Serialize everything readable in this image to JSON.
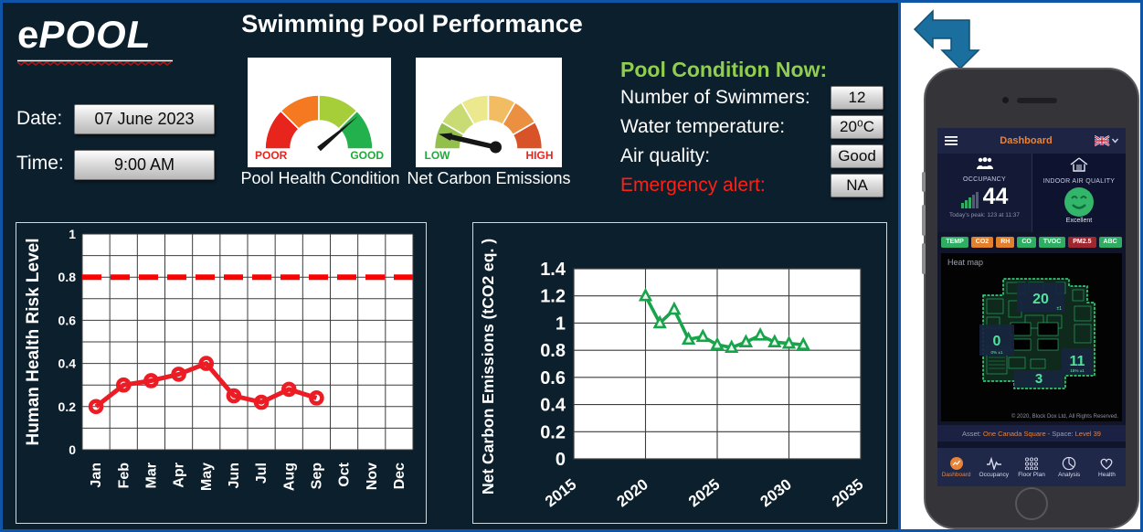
{
  "logo": {
    "prefix": "e",
    "caps": "POOL"
  },
  "header": {
    "title": "Swimming Pool Performance"
  },
  "datetime": {
    "date_label": "Date:",
    "date_value": "07 June 2023",
    "time_label": "Time:",
    "time_value": "9:00 AM"
  },
  "gauges": [
    {
      "caption": "Pool Health Condition",
      "left_label": "POOR",
      "right_label": "GOOD",
      "left_color": "#e8251d",
      "right_color": "#1faa3c",
      "segments": [
        "#e8251d",
        "#f47920",
        "#a6ce39",
        "#22b14c"
      ],
      "needle_angle_deg": 40
    },
    {
      "caption": "Net Carbon Emissions",
      "left_label": "LOW",
      "right_label": "HIGH",
      "left_color": "#1faa3c",
      "right_color": "#e8251d",
      "segments": [
        "#93bf4d",
        "#c9dc74",
        "#ebe88e",
        "#f2bd62",
        "#eb8f41",
        "#d85428"
      ],
      "needle_angle_deg": 167
    }
  ],
  "condition_panel": {
    "title": "Pool Condition Now:",
    "rows": [
      {
        "label": "Number of Swimmers:",
        "value": "12",
        "label_color": "#ffffff"
      },
      {
        "label": "Water temperature:",
        "value": "20⁰C",
        "label_color": "#ffffff"
      },
      {
        "label": "Air quality:",
        "value": "Good",
        "label_color": "#ffffff"
      },
      {
        "label": "Emergency alert:",
        "value": "NA",
        "label_color": "#ff2015"
      }
    ]
  },
  "chart_data": [
    {
      "type": "line",
      "title": "",
      "ylabel": "Human Health Risk Level",
      "xlabel": "",
      "categories": [
        "Jan",
        "Feb",
        "Mar",
        "Apr",
        "May",
        "Jun",
        "Jul",
        "Aug",
        "Sep",
        "Oct",
        "Nov",
        "Dec"
      ],
      "values": [
        0.2,
        0.3,
        0.32,
        0.35,
        0.4,
        0.25,
        0.22,
        0.28,
        0.24
      ],
      "series_color": "#ec1c24",
      "marker": "open-circle",
      "threshold": {
        "value": 0.8,
        "color": "#ff0000",
        "style": "dashed"
      },
      "ylim": [
        0,
        1
      ],
      "ytick_step": 0.2,
      "minor_ytick_step": 0.1,
      "grid": true,
      "legend": "none"
    },
    {
      "type": "line",
      "title": "",
      "ylabel": "Net Carbon Emissions (tCO2 eq. )",
      "xlabel": "",
      "x": [
        2020,
        2021,
        2022,
        2023,
        2024,
        2025,
        2026,
        2027,
        2028,
        2029,
        2030,
        2031
      ],
      "values": [
        1.2,
        1.0,
        1.1,
        0.88,
        0.9,
        0.84,
        0.82,
        0.86,
        0.91,
        0.86,
        0.85,
        0.84
      ],
      "series_color": "#17a44a",
      "marker": "open-triangle",
      "xlim": [
        2015,
        2035
      ],
      "xticks": [
        2015,
        2020,
        2025,
        2030,
        2035
      ],
      "ylim": [
        0,
        1.4
      ],
      "ytick_step": 0.2,
      "grid": true,
      "legend": "none"
    }
  ],
  "phone": {
    "top_bar": {
      "title": "Dashboard"
    },
    "occupancy": {
      "label": "OCCUPANCY",
      "value": "44",
      "peak": "Today's peak: 123 at 11:37"
    },
    "iaq": {
      "label": "INDOOR AIR QUALITY",
      "status": "Excellent"
    },
    "chips": [
      {
        "label": "TEMP",
        "color": "#2fae63"
      },
      {
        "label": "CO2",
        "color": "#e2802e"
      },
      {
        "label": "RH",
        "color": "#e2802e"
      },
      {
        "label": "CO",
        "color": "#2fae63"
      },
      {
        "label": "TVOC",
        "color": "#2fae63"
      },
      {
        "label": "PM2.5",
        "color": "#9e2830"
      },
      {
        "label": "ABC",
        "color": "#2fae63"
      }
    ],
    "heatmap": {
      "title": "Heat map",
      "zones": [
        {
          "value": "20",
          "sub": "±1"
        },
        {
          "value": "0",
          "sub": "0%  ±1"
        },
        {
          "value": "11",
          "sub": "15%  ±1"
        },
        {
          "value": "3",
          "sub": ""
        }
      ],
      "copyright": "© 2020, Block Dox Ltd, All Rights Reserved."
    },
    "asset_bar": {
      "asset_label": "Asset:",
      "asset": "One Canada Square",
      "space_label": "- Space:",
      "space": "Level 39"
    },
    "nav": [
      {
        "label": "Dashboard",
        "icon": "dashboard",
        "active": true
      },
      {
        "label": "Occupancy",
        "icon": "pulse",
        "active": false
      },
      {
        "label": "Floor Plan",
        "icon": "dots-grid",
        "active": false
      },
      {
        "label": "Analysis",
        "icon": "pie",
        "active": false
      },
      {
        "label": "Health",
        "icon": "heart",
        "active": false
      }
    ]
  },
  "colors": {
    "panel_bg": "#0c1f2d",
    "frame_blue": "#0e55a7",
    "accent_orange": "#e8833a",
    "good_green": "#8fce4e",
    "alert_red": "#ff2015"
  }
}
